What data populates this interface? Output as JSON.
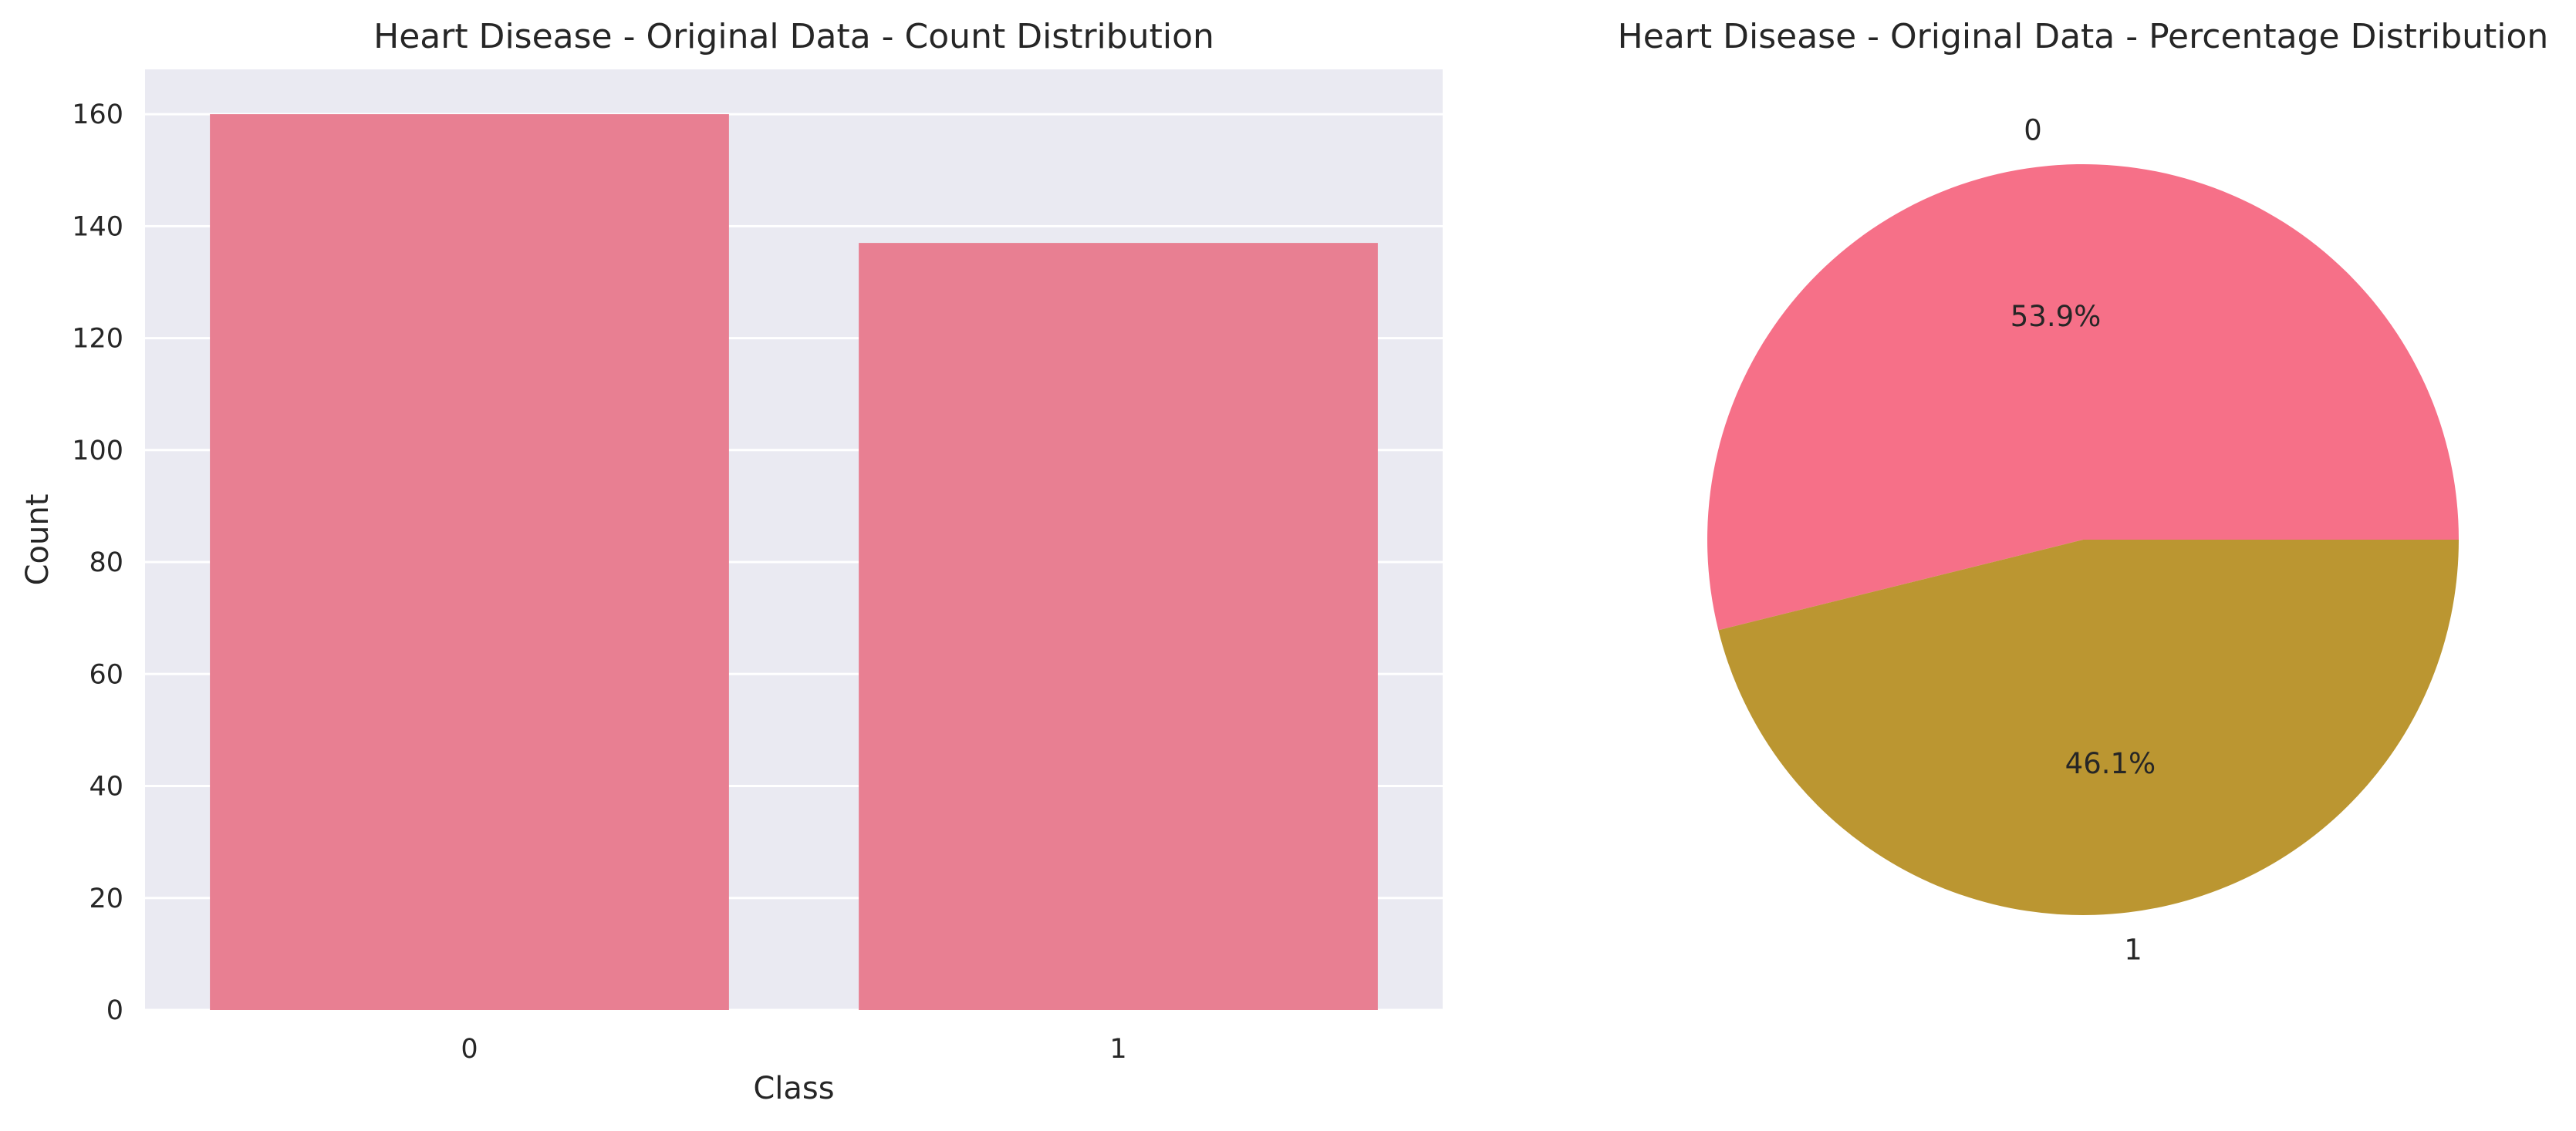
{
  "chart_data": [
    {
      "type": "bar",
      "title": "Heart Disease - Original Data - Count Distribution",
      "xlabel": "Class",
      "ylabel": "Count",
      "categories": [
        "0",
        "1"
      ],
      "values": [
        160,
        137
      ],
      "ylim": [
        0,
        168
      ],
      "yticks": [
        0,
        20,
        40,
        60,
        80,
        100,
        120,
        140,
        160
      ],
      "grid": true,
      "colors": {
        "bar": "#e87f92",
        "background": "#eaeaf2",
        "grid": "#ffffff"
      }
    },
    {
      "type": "pie",
      "title": "Heart Disease - Original Data - Percentage Distribution",
      "labels": [
        "0",
        "1"
      ],
      "values": [
        160,
        137
      ],
      "percent_labels": [
        "53.9%",
        "46.1%"
      ],
      "colors": [
        "#f67088",
        "#bb9631"
      ]
    }
  ]
}
